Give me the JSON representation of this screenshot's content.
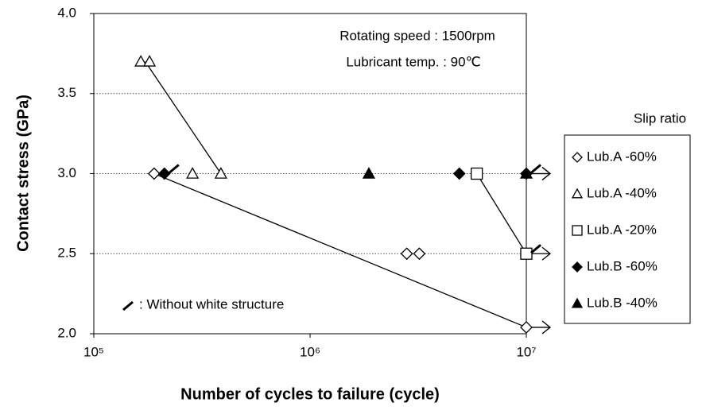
{
  "chart_data": {
    "type": "scatter",
    "xlabel": "Number of cycles to failure (cycle)",
    "ylabel": "Contact stress (GPa)",
    "annotations": [
      "Rotating speed : 1500rpm",
      "Lubricant temp. : 90℃",
      ": Without white structure"
    ],
    "legend_title": "Slip ratio",
    "xscale": "log",
    "xlim": [
      100000,
      10000000
    ],
    "xticks": [
      {
        "value": 100000,
        "label": "10⁵"
      },
      {
        "value": 1000000,
        "label": "10⁶"
      },
      {
        "value": 10000000,
        "label": "10⁷"
      }
    ],
    "ylim": [
      2.0,
      4.0
    ],
    "yticks": [
      {
        "value": 2.0,
        "label": "2.0"
      },
      {
        "value": 2.5,
        "label": "2.5"
      },
      {
        "value": 3.0,
        "label": "3.0"
      },
      {
        "value": 3.5,
        "label": "3.5"
      },
      {
        "value": 4.0,
        "label": "4.0"
      }
    ],
    "grid": true,
    "legend": "right",
    "series": [
      {
        "name": "Lub.A -60%",
        "marker": "diamond",
        "filled": false,
        "x": [
          190000,
          2800000,
          3200000,
          10000000
        ],
        "values": [
          3.0,
          2.5,
          2.5,
          2.04
        ]
      },
      {
        "name": "Lub.A -40%",
        "marker": "triangle",
        "filled": false,
        "x": [
          165000,
          181000,
          286000,
          387000
        ],
        "values": [
          3.7,
          3.7,
          3.0,
          3.0
        ]
      },
      {
        "name": "Lub.A -20%",
        "marker": "square",
        "filled": false,
        "x": [
          5900000,
          10000000
        ],
        "values": [
          3.0,
          2.5
        ]
      },
      {
        "name": "Lub.B -60%",
        "marker": "diamond",
        "filled": true,
        "x": [
          212000,
          4900000,
          10000000
        ],
        "values": [
          3.0,
          3.0,
          3.0
        ]
      },
      {
        "name": "Lub.B -40%",
        "marker": "triangle",
        "filled": true,
        "x": [
          1870000,
          10000000
        ],
        "values": [
          3.0,
          3.0
        ]
      }
    ]
  }
}
